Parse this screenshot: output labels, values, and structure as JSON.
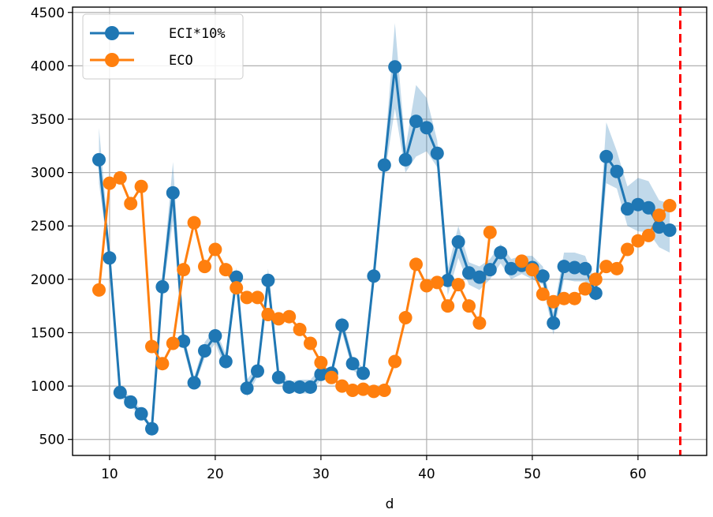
{
  "chart_data": {
    "type": "line",
    "title": "",
    "xlabel": "d",
    "ylabel": "",
    "xlim": [
      6.5,
      66.5
    ],
    "ylim": [
      350,
      4550
    ],
    "xticks": [
      10,
      20,
      30,
      40,
      50,
      60
    ],
    "yticks": [
      500,
      1000,
      1500,
      2000,
      2500,
      3000,
      3500,
      4000,
      4500
    ],
    "grid": true,
    "legend_position": "upper-left",
    "vline": {
      "x": 64,
      "color": "#ff0000",
      "style": "dashed"
    },
    "series": [
      {
        "name": "ECI*10%",
        "color": "#1f77b4",
        "marker": "circle",
        "band": true,
        "x": [
          9,
          10,
          11,
          12,
          13,
          14,
          15,
          16,
          17,
          18,
          19,
          20,
          21,
          22,
          23,
          24,
          25,
          26,
          27,
          28,
          29,
          30,
          31,
          32,
          33,
          34,
          35,
          36,
          37,
          38,
          39,
          40,
          41,
          42,
          43,
          44,
          45,
          46,
          47,
          48,
          49,
          50,
          51,
          52,
          53,
          54,
          55,
          56,
          57,
          58,
          59,
          60,
          61,
          62,
          63
        ],
        "y": [
          3120,
          2200,
          940,
          850,
          740,
          600,
          1930,
          2810,
          1420,
          1030,
          1330,
          1470,
          1230,
          2020,
          980,
          1140,
          1990,
          1080,
          990,
          990,
          990,
          1110,
          1120,
          1570,
          1210,
          1120,
          2030,
          3070,
          3990,
          3120,
          3480,
          3420,
          3180,
          1990,
          2350,
          2060,
          2020,
          2090,
          2250,
          2100,
          2130,
          2110,
          2030,
          1590,
          2120,
          2110,
          2100,
          1870,
          3150,
          3010,
          2660,
          2700,
          2670,
          2490,
          2460
        ],
        "y_lower": [
          2900,
          2150,
          900,
          810,
          710,
          590,
          1850,
          2550,
          1350,
          990,
          1260,
          1400,
          1150,
          1950,
          900,
          1090,
          1870,
          1050,
          950,
          930,
          930,
          1060,
          1070,
          1500,
          1150,
          1070,
          1950,
          2950,
          3600,
          3000,
          3150,
          3200,
          3050,
          1850,
          2200,
          1950,
          1900,
          2000,
          2150,
          2000,
          2050,
          2000,
          1950,
          1480,
          2000,
          1980,
          1980,
          1790,
          2900,
          2850,
          2500,
          2450,
          2440,
          2300,
          2250
        ],
        "y_upper": [
          3420,
          2290,
          990,
          890,
          780,
          620,
          2000,
          3100,
          1490,
          1080,
          1410,
          1540,
          1300,
          2110,
          1060,
          1190,
          2100,
          1120,
          1040,
          1060,
          1060,
          1170,
          1170,
          1650,
          1270,
          1170,
          2110,
          3150,
          4400,
          3230,
          3820,
          3700,
          3300,
          2100,
          2500,
          2160,
          2120,
          2190,
          2330,
          2190,
          2220,
          2220,
          2120,
          1690,
          2250,
          2250,
          2220,
          1960,
          3470,
          3200,
          2870,
          2950,
          2920,
          2740,
          2710
        ]
      },
      {
        "name": "ECO",
        "color": "#ff7f0e",
        "marker": "circle",
        "x": [
          9,
          10,
          11,
          12,
          13,
          14,
          15,
          16,
          17,
          18,
          19,
          20,
          21,
          22,
          23,
          24,
          25,
          26,
          27,
          28,
          29,
          30,
          31,
          32,
          33,
          34,
          35,
          36,
          37,
          38,
          39,
          40,
          41,
          42,
          43,
          44,
          45,
          46
        ],
        "y": [
          1900,
          2900,
          2950,
          2710,
          2870,
          1370,
          1210,
          1400,
          2090,
          2530,
          2120,
          2280,
          2090,
          1920,
          1830,
          1830,
          1670,
          1630,
          1650,
          1530,
          1400,
          1220,
          1080,
          1000,
          960,
          970,
          950,
          960,
          1230,
          1640,
          2140,
          1940,
          1970,
          1750,
          1950,
          1750,
          1590,
          2440
        ],
        "x2": [
          49,
          50,
          51,
          52,
          53,
          54,
          55,
          56,
          57,
          58,
          59,
          60,
          61,
          62,
          63
        ],
        "y2": [
          2170,
          2090,
          1860,
          1790,
          1820,
          1820,
          1910,
          2000,
          2120,
          2100,
          2280,
          2360,
          2410,
          2600,
          2690
        ]
      }
    ]
  }
}
